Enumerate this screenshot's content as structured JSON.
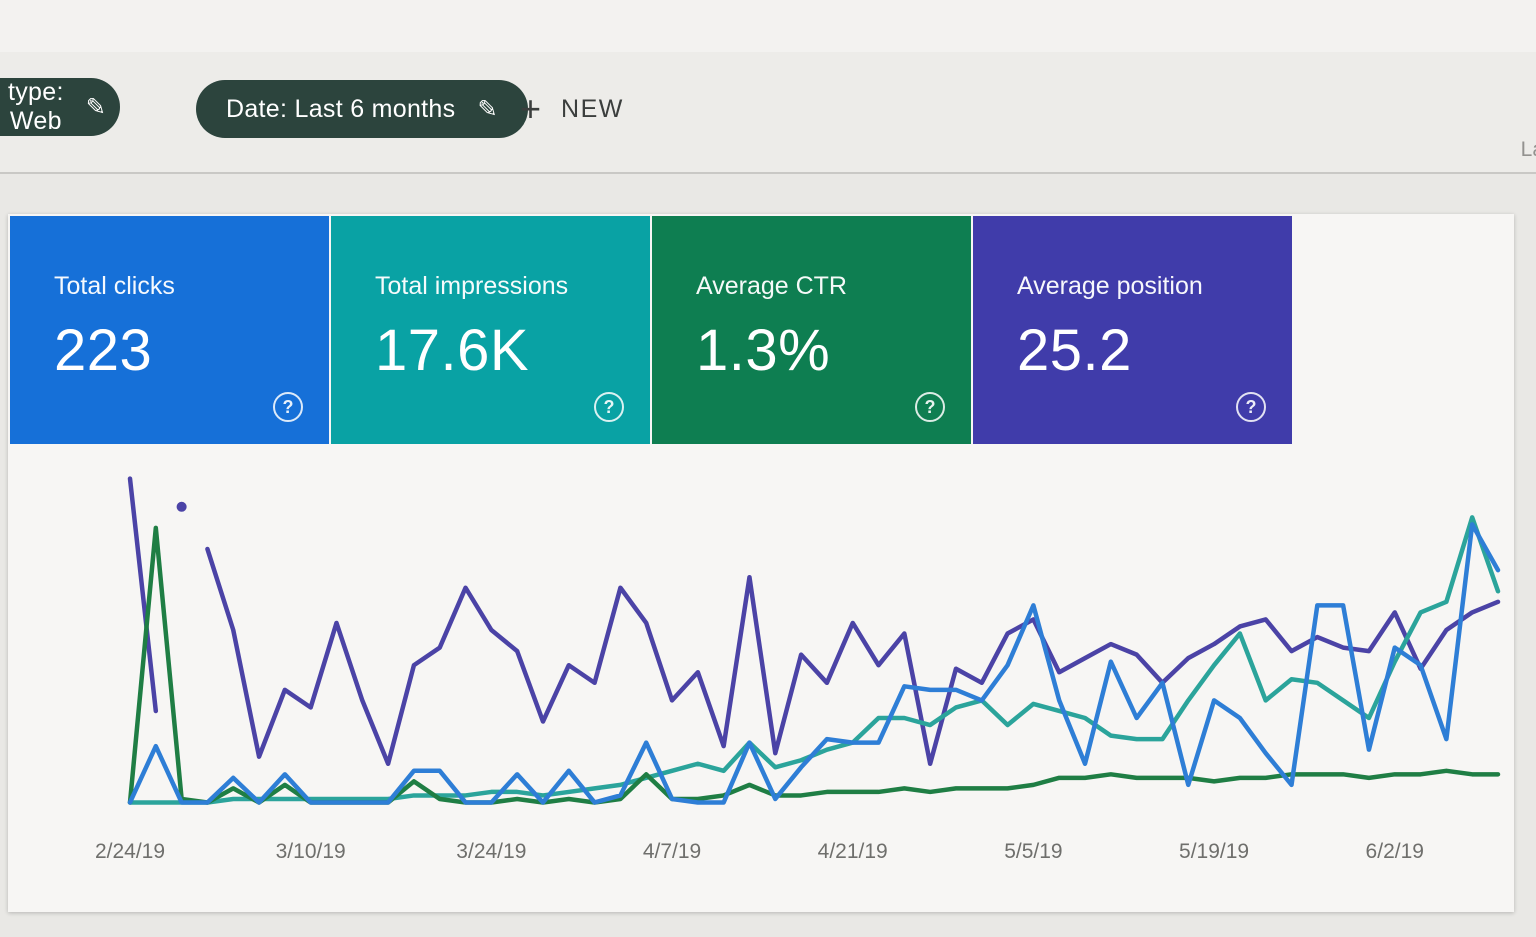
{
  "toolbar": {
    "filter_chips": [
      {
        "label": "type: Web",
        "icon": "pencil-edit"
      },
      {
        "label": "Date: Last 6 months",
        "icon": "pencil-edit"
      }
    ],
    "new_button": {
      "label": "NEW",
      "icon": "plus"
    },
    "right_partial_text": "La"
  },
  "metric_cards": [
    {
      "title": "Total clicks",
      "value": "223",
      "color": "#1670d8"
    },
    {
      "title": "Total impressions",
      "value": "17.6K",
      "color": "#09a2a4"
    },
    {
      "title": "Average CTR",
      "value": "1.3%",
      "color": "#0e7e51"
    },
    {
      "title": "Average position",
      "value": "25.2",
      "color": "#403caa"
    },
    {
      "help_icon": "?"
    }
  ],
  "chart_data": {
    "type": "line",
    "title": "",
    "xlabel": "",
    "ylabel": "",
    "x_tick_labels": [
      "2/24/19",
      "3/10/19",
      "3/24/19",
      "4/7/19",
      "4/21/19",
      "5/5/19",
      "5/19/19",
      "6/2/19"
    ],
    "x_tick_days": [
      0,
      14,
      28,
      42,
      56,
      70,
      84,
      98
    ],
    "x_range_days": [
      0,
      106
    ],
    "sample_step_days": 2,
    "y_axis_note": "no y-axis labels visible; values are percent of plot height (0 = baseline, 100 = top)",
    "grid": false,
    "legend": "none visible",
    "series": [
      {
        "name": "Average position",
        "color": "#4b43a6",
        "segments": [
          [
            0,
            1
          ],
          [
            2,
            2
          ],
          [
            3,
            53
          ]
        ],
        "values": [
          93,
          27,
          85,
          73,
          50,
          14,
          33,
          28,
          52,
          30,
          12,
          40,
          45,
          62,
          50,
          44,
          24,
          40,
          35,
          62,
          52,
          30,
          38,
          17,
          65,
          15,
          43,
          35,
          52,
          40,
          49,
          12,
          39,
          35,
          49,
          53,
          38,
          42,
          46,
          43,
          35,
          42,
          46,
          51,
          53,
          44,
          48,
          45,
          44,
          55,
          39,
          50,
          55,
          58
        ]
      },
      {
        "name": "Total impressions",
        "color": "#2ba49b",
        "values": [
          1,
          1,
          1,
          1,
          2,
          2,
          2,
          2,
          2,
          2,
          2,
          3,
          3,
          3,
          4,
          4,
          3,
          4,
          5,
          6,
          8,
          10,
          12,
          10,
          18,
          11,
          13,
          16,
          18,
          25,
          25,
          23,
          28,
          30,
          23,
          29,
          27,
          25,
          20,
          19,
          19,
          30,
          40,
          49,
          30,
          36,
          35,
          30,
          25,
          41,
          55,
          58,
          82,
          61
        ]
      },
      {
        "name": "Average CTR",
        "color": "#1f7e44",
        "values": [
          1,
          79,
          2,
          1,
          5,
          1,
          6,
          1,
          1,
          1,
          1,
          7,
          2,
          1,
          1,
          2,
          1,
          2,
          1,
          2,
          9,
          2,
          2,
          3,
          6,
          3,
          3,
          4,
          4,
          4,
          5,
          4,
          5,
          5,
          5,
          6,
          8,
          8,
          9,
          8,
          8,
          8,
          7,
          8,
          8,
          9,
          9,
          9,
          8,
          9,
          9,
          10,
          9,
          9
        ]
      },
      {
        "name": "Total clicks",
        "color": "#2e7ed6",
        "values": [
          1,
          17,
          1,
          1,
          8,
          1,
          9,
          1,
          1,
          1,
          1,
          10,
          10,
          1,
          1,
          9,
          1,
          10,
          1,
          3,
          18,
          2,
          1,
          1,
          18,
          2,
          11,
          19,
          18,
          18,
          34,
          33,
          33,
          30,
          40,
          57,
          30,
          12,
          41,
          25,
          35,
          6,
          30,
          25,
          15,
          6,
          57,
          57,
          16,
          45,
          40,
          19,
          80,
          67
        ]
      }
    ]
  }
}
